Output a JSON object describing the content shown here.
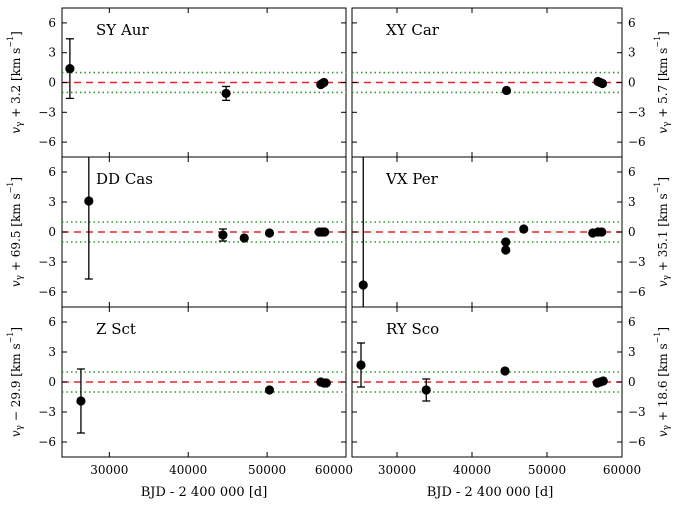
{
  "colors": {
    "zero_line": "#e0282e",
    "band": "#2e9a2e",
    "points": "#000000",
    "frame": "#000000"
  },
  "chart_data": {
    "type": "scatter",
    "shared_x": {
      "label": "BJD - 2 400 000 [d]",
      "range": [
        24000,
        60000
      ],
      "ticks": [
        30000,
        40000,
        50000,
        60000
      ],
      "left_column_ticks": [
        "30000",
        "40000",
        "50000",
        "60000"
      ],
      "right_column_ticks": [
        "30000",
        "40000",
        "50000",
        "60000"
      ],
      "edge_label": "60000"
    },
    "shared_y": {
      "range": [
        -7.5,
        7.5
      ],
      "ticks": [
        -6,
        -3,
        0,
        3,
        6
      ],
      "tick_labels": [
        "−6",
        "−3",
        "0",
        "3",
        "6"
      ],
      "zero_line": 0,
      "band": [
        -1,
        1
      ]
    },
    "panels": [
      {
        "star": "SY Aur",
        "ylabel": "vγ + 3.2 [km s⁻¹]",
        "points": [
          {
            "x": 25000,
            "y": 1.4,
            "err": 3.0
          },
          {
            "x": 44800,
            "y": -1.1,
            "err": 0.7
          },
          {
            "x": 56800,
            "y": -0.2
          },
          {
            "x": 57000,
            "y": -0.1
          },
          {
            "x": 57200,
            "y": 0.0
          }
        ]
      },
      {
        "star": "XY Car",
        "ylabel": "vγ + 5.7 [km s⁻¹]",
        "points": [
          {
            "x": 44600,
            "y": -0.8
          },
          {
            "x": 56800,
            "y": 0.1
          },
          {
            "x": 57100,
            "y": 0.0
          },
          {
            "x": 57400,
            "y": -0.1
          }
        ]
      },
      {
        "star": "DD Cas",
        "ylabel": "vγ + 69.5 [km s⁻¹]",
        "points": [
          {
            "x": 27400,
            "y": 3.1,
            "err": 7.8
          },
          {
            "x": 44400,
            "y": -0.3,
            "err": 0.6
          },
          {
            "x": 47100,
            "y": -0.6
          },
          {
            "x": 50300,
            "y": -0.1
          },
          {
            "x": 56600,
            "y": 0.0
          },
          {
            "x": 57000,
            "y": 0.0
          },
          {
            "x": 57300,
            "y": 0.0
          }
        ]
      },
      {
        "star": "VX Per",
        "ylabel": "vγ + 35.1 [km s⁻¹]",
        "points": [
          {
            "x": 25500,
            "y": -5.3,
            "err": 13.0
          },
          {
            "x": 44500,
            "y": -1.0
          },
          {
            "x": 44500,
            "y": -1.8
          },
          {
            "x": 46900,
            "y": 0.3
          },
          {
            "x": 56100,
            "y": -0.1
          },
          {
            "x": 56800,
            "y": 0.0
          },
          {
            "x": 57300,
            "y": 0.0
          }
        ]
      },
      {
        "star": "Z Sct",
        "ylabel": "vγ − 29.9 [km s⁻¹]",
        "points": [
          {
            "x": 26400,
            "y": -1.9,
            "err": 3.2
          },
          {
            "x": 50300,
            "y": -0.8
          },
          {
            "x": 56800,
            "y": 0.0
          },
          {
            "x": 57200,
            "y": -0.1
          },
          {
            "x": 57500,
            "y": -0.1
          }
        ]
      },
      {
        "star": "RY Sco",
        "ylabel": "vγ + 18.6 [km s⁻¹]",
        "points": [
          {
            "x": 25200,
            "y": 1.7,
            "err": 2.2
          },
          {
            "x": 33900,
            "y": -0.8,
            "err": 1.1
          },
          {
            "x": 44400,
            "y": 1.1
          },
          {
            "x": 56700,
            "y": -0.1
          },
          {
            "x": 57100,
            "y": 0.0
          },
          {
            "x": 57500,
            "y": 0.1
          }
        ]
      }
    ]
  }
}
